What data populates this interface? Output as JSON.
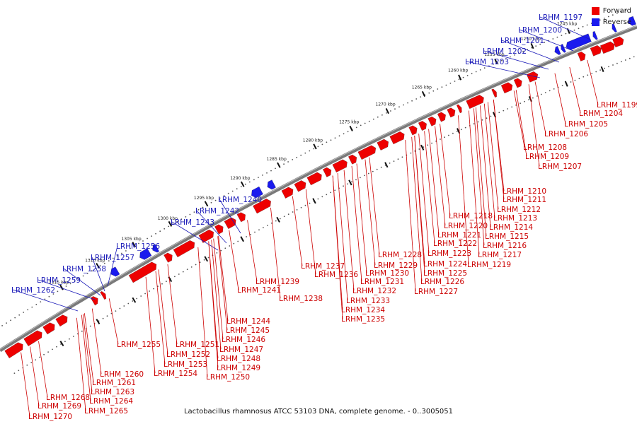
{
  "caption": "Lactobacillus rhamnosus ATCC 53103 DNA, complete genome. - 0..3005051",
  "legend": [
    {
      "label": "Forward",
      "color": "#ee0000"
    },
    {
      "label": "Reverse",
      "color": "#1a1aee"
    }
  ],
  "colors": {
    "forward": "#ee0000",
    "reverse": "#1a1aee",
    "backbone": "#7a7a7a",
    "forward_label": "#cc0000",
    "reverse_label": "#1a1ab8"
  },
  "ticks": [
    "1245 kbp",
    "1250 kbp",
    "1255 kbp",
    "1260 kbp",
    "1265 kbp",
    "1270 kbp",
    "1275 kbp",
    "1280 kbp",
    "1285 kbp",
    "1290 kbp",
    "1295 kbp",
    "1300 kbp",
    "1305 kbp",
    "1310 kbp",
    "1315 kbp"
  ],
  "forward_labels": [
    "LRHM_1199",
    "LRHM_1204",
    "LRHM_1205",
    "LRHM_1206",
    "LRHM_1208",
    "LRHM_1209",
    "LRHM_1207",
    "LRHM_1210",
    "LRHM_1211",
    "LRHM_1212",
    "LRHM_1213",
    "LRHM_1218",
    "LRHM_1214",
    "LRHM_1220",
    "LRHM_1215",
    "LRHM_1221",
    "LRHM_1216",
    "LRHM_1222",
    "LRHM_1217",
    "LRHM_1223",
    "LRHM_1219",
    "LRHM_1228",
    "LRHM_1224",
    "LRHM_1237",
    "LRHM_1229",
    "LRHM_1225",
    "LRHM_1236",
    "LRHM_1230",
    "LRHM_1226",
    "LRHM_1239",
    "LRHM_1231",
    "LRHM_1227",
    "LRHM_1241",
    "LRHM_1232",
    "LRHM_1238",
    "LRHM_1233",
    "LRHM_1234",
    "LRHM_1235",
    "LRHM_1244",
    "LRHM_1245",
    "LRHM_1246",
    "LRHM_1255",
    "LRHM_1251",
    "LRHM_1247",
    "LRHM_1252",
    "LRHM_1248",
    "LRHM_1253",
    "LRHM_1249",
    "LRHM_1254",
    "LRHM_1250",
    "LRHM_1260",
    "LRHM_1261",
    "LRHM_1263",
    "LRHM_1268",
    "LRHM_1264",
    "LRHM_1269",
    "LRHM_1265",
    "LRHM_1270"
  ],
  "reverse_labels": [
    "LRHM_1197",
    "LRHM_1200",
    "LRHM_1201",
    "LRHM_1202",
    "LRHM_1203",
    "LRHM_1240",
    "LRHM_1242",
    "LRHM_1243",
    "LRHM_1256",
    "LRHM_1257",
    "LRHM_1258",
    "LRHM_1259",
    "LRHM_1262"
  ]
}
